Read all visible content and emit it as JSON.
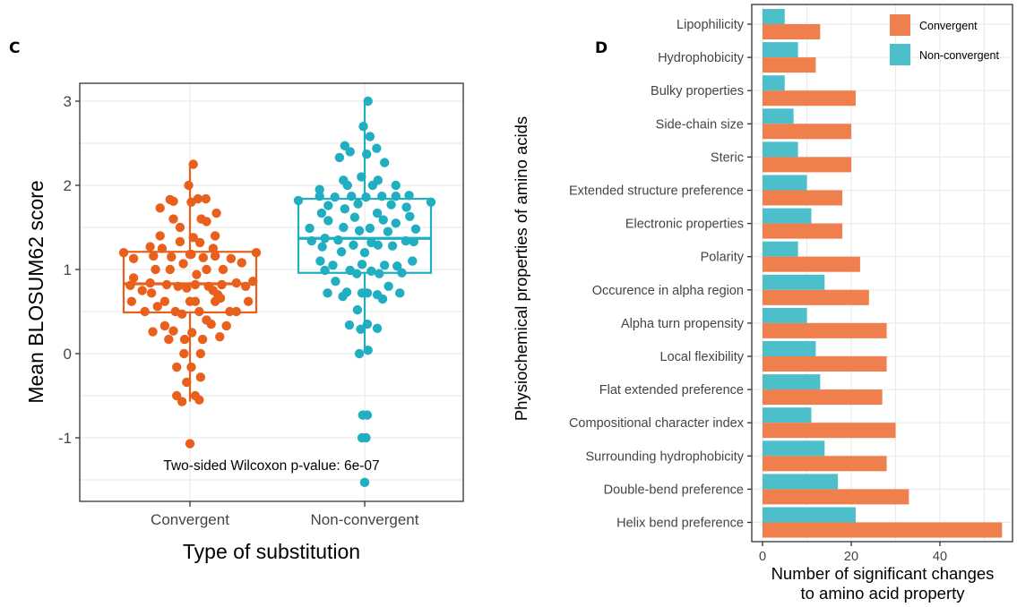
{
  "chart_data": [
    {
      "panel": "C",
      "type": "boxplot",
      "title": "",
      "xlabel": "Type of substitution",
      "ylabel": "Mean BLOSUM62 score",
      "ylim": [
        -1.75,
        3.2
      ],
      "yticks": [
        3,
        2,
        1,
        0,
        -1
      ],
      "ytick_labels": [
        "3",
        "2",
        "1",
        "0",
        "-1"
      ],
      "grid": true,
      "annotation": "Two-sided Wilcoxon p-value: 6e-07",
      "categories": [
        "Convergent",
        "Non-convergent"
      ],
      "series": [
        {
          "name": "Convergent",
          "color": "#e8601c",
          "box": {
            "q1": 0.49,
            "median": 0.83,
            "q3": 1.21,
            "whisker_low": -0.57,
            "whisker_high": 2.25
          },
          "points": [
            [
              0.05,
              2.25
            ],
            [
              -0.02,
              2.0
            ],
            [
              -0.3,
              1.83
            ],
            [
              -0.25,
              1.81
            ],
            [
              0.02,
              1.8
            ],
            [
              0.12,
              1.84
            ],
            [
              0.24,
              1.84
            ],
            [
              -0.45,
              1.73
            ],
            [
              0.4,
              1.67
            ],
            [
              -0.25,
              1.6
            ],
            [
              0.17,
              1.6
            ],
            [
              0.25,
              1.57
            ],
            [
              -0.15,
              1.5
            ],
            [
              -0.45,
              1.4
            ],
            [
              0.05,
              1.38
            ],
            [
              0.38,
              1.4
            ],
            [
              0.15,
              1.32
            ],
            [
              -0.15,
              1.33
            ],
            [
              -0.6,
              1.27
            ],
            [
              -0.42,
              1.25
            ],
            [
              0.35,
              1.25
            ],
            [
              -1.0,
              1.2
            ],
            [
              1.0,
              1.2
            ],
            [
              0.0,
              1.18
            ],
            [
              -0.55,
              1.16
            ],
            [
              -0.28,
              1.15
            ],
            [
              0.02,
              1.18
            ],
            [
              0.38,
              1.16
            ],
            [
              0.2,
              1.14
            ],
            [
              -0.85,
              1.13
            ],
            [
              0.62,
              1.13
            ],
            [
              0.78,
              1.08
            ],
            [
              -0.1,
              1.07
            ],
            [
              -0.52,
              1.0
            ],
            [
              -0.3,
              1.0
            ],
            [
              0.25,
              1.0
            ],
            [
              0.5,
              1.0
            ],
            [
              0.1,
              0.94
            ],
            [
              -0.85,
              0.9
            ],
            [
              0.95,
              0.86
            ],
            [
              -0.9,
              0.81
            ],
            [
              -0.6,
              0.84
            ],
            [
              -0.35,
              0.82
            ],
            [
              -0.18,
              0.8
            ],
            [
              0.08,
              0.82
            ],
            [
              0.28,
              0.8
            ],
            [
              0.48,
              0.82
            ],
            [
              0.7,
              0.84
            ],
            [
              0.84,
              0.8
            ],
            [
              -0.05,
              0.78
            ],
            [
              0.35,
              0.75
            ],
            [
              -0.58,
              0.72
            ],
            [
              0.42,
              0.7
            ],
            [
              -0.72,
              0.75
            ],
            [
              -0.88,
              0.62
            ],
            [
              -0.38,
              0.62
            ],
            [
              0.0,
              0.62
            ],
            [
              0.08,
              0.62
            ],
            [
              0.38,
              0.62
            ],
            [
              0.88,
              0.62
            ],
            [
              0.46,
              0.66
            ],
            [
              -0.49,
              0.56
            ],
            [
              -0.68,
              0.5
            ],
            [
              -0.22,
              0.5
            ],
            [
              -0.12,
              0.47
            ],
            [
              0.14,
              0.5
            ],
            [
              0.6,
              0.5
            ],
            [
              0.7,
              0.5
            ],
            [
              0.25,
              0.4
            ],
            [
              0.32,
              0.35
            ],
            [
              -0.38,
              0.33
            ],
            [
              0.55,
              0.33
            ],
            [
              -0.56,
              0.26
            ],
            [
              -0.25,
              0.27
            ],
            [
              0.03,
              0.25
            ],
            [
              0.45,
              0.2
            ],
            [
              -0.32,
              0.17
            ],
            [
              -0.08,
              0.17
            ],
            [
              0.19,
              0.17
            ],
            [
              -0.09,
              0.0
            ],
            [
              0.16,
              0.0
            ],
            [
              -0.2,
              -0.16
            ],
            [
              0.02,
              -0.16
            ],
            [
              0.16,
              -0.28
            ],
            [
              -0.05,
              -0.34
            ],
            [
              -0.2,
              -0.5
            ],
            [
              0.08,
              -0.5
            ],
            [
              -0.12,
              -0.57
            ],
            [
              0.14,
              -0.55
            ],
            [
              0.0,
              -1.07
            ]
          ]
        },
        {
          "name": "Non-convergent",
          "color": "#20aec0",
          "box": {
            "q1": 0.96,
            "median": 1.37,
            "q3": 1.84,
            "whisker_low": 0.02,
            "whisker_high": 3.0
          },
          "points": [
            [
              0.05,
              3.0
            ],
            [
              -0.02,
              2.7
            ],
            [
              0.08,
              2.58
            ],
            [
              -0.3,
              2.47
            ],
            [
              -0.22,
              2.4
            ],
            [
              0.18,
              2.44
            ],
            [
              -0.38,
              2.33
            ],
            [
              0.03,
              2.37
            ],
            [
              0.3,
              2.27
            ],
            [
              -0.32,
              2.06
            ],
            [
              -0.26,
              2.0
            ],
            [
              -0.05,
              2.1
            ],
            [
              0.2,
              2.06
            ],
            [
              0.12,
              2.0
            ],
            [
              0.47,
              2.0
            ],
            [
              -0.68,
              1.95
            ],
            [
              -0.68,
              1.87
            ],
            [
              -0.45,
              1.86
            ],
            [
              -0.2,
              1.87
            ],
            [
              0.02,
              1.86
            ],
            [
              0.26,
              1.87
            ],
            [
              0.47,
              1.87
            ],
            [
              0.67,
              1.88
            ],
            [
              -1.0,
              1.82
            ],
            [
              1.0,
              1.8
            ],
            [
              -0.55,
              1.76
            ],
            [
              -0.3,
              1.72
            ],
            [
              -0.1,
              1.78
            ],
            [
              0.4,
              1.77
            ],
            [
              0.63,
              1.74
            ],
            [
              -0.65,
              1.67
            ],
            [
              0.19,
              1.67
            ],
            [
              -0.55,
              1.58
            ],
            [
              -0.15,
              1.62
            ],
            [
              0.28,
              1.59
            ],
            [
              0.47,
              1.55
            ],
            [
              0.68,
              1.63
            ],
            [
              -0.83,
              1.49
            ],
            [
              -0.32,
              1.5
            ],
            [
              -0.08,
              1.46
            ],
            [
              0.08,
              1.49
            ],
            [
              0.35,
              1.45
            ],
            [
              0.77,
              1.48
            ],
            [
              -0.8,
              1.34
            ],
            [
              -0.6,
              1.37
            ],
            [
              -0.4,
              1.35
            ],
            [
              -0.17,
              1.29
            ],
            [
              0.1,
              1.32
            ],
            [
              0.2,
              1.29
            ],
            [
              0.62,
              1.34
            ],
            [
              0.74,
              1.33
            ],
            [
              -0.64,
              1.27
            ],
            [
              0.42,
              1.28
            ],
            [
              -0.35,
              1.21
            ],
            [
              0.0,
              1.2
            ],
            [
              -0.67,
              1.1
            ],
            [
              -0.48,
              1.05
            ],
            [
              -0.04,
              1.06
            ],
            [
              0.3,
              1.05
            ],
            [
              0.49,
              1.04
            ],
            [
              0.72,
              1.1
            ],
            [
              -0.6,
              0.99
            ],
            [
              -0.22,
              0.99
            ],
            [
              0.1,
              0.98
            ],
            [
              -0.12,
              0.95
            ],
            [
              0.22,
              0.95
            ],
            [
              0.56,
              0.96
            ],
            [
              -0.44,
              0.86
            ],
            [
              0.36,
              0.8
            ],
            [
              -0.56,
              0.72
            ],
            [
              -0.33,
              0.68
            ],
            [
              -0.27,
              0.73
            ],
            [
              -0.04,
              0.72
            ],
            [
              0.04,
              0.72
            ],
            [
              0.19,
              0.7
            ],
            [
              0.27,
              0.65
            ],
            [
              0.53,
              0.72
            ],
            [
              -0.11,
              0.52
            ],
            [
              -0.23,
              0.34
            ],
            [
              0.04,
              0.35
            ],
            [
              -0.06,
              0.29
            ],
            [
              0.19,
              0.3
            ],
            [
              -0.08,
              0.0
            ],
            [
              0.05,
              0.04
            ],
            [
              -0.03,
              -0.73
            ],
            [
              0.04,
              -0.73
            ],
            [
              -0.04,
              -1.0
            ],
            [
              0.02,
              -1.0
            ],
            [
              0.0,
              -1.53
            ]
          ]
        }
      ]
    },
    {
      "panel": "D",
      "type": "bar",
      "orientation": "horizontal",
      "title": "",
      "xlabel": "Number of significant changes\nto amino acid property",
      "xlabel_lines": [
        "Number of significant changes",
        "to amino acid property"
      ],
      "ylabel": "Physiochemical properties of amino acids",
      "xlim": [
        0,
        54
      ],
      "xticks": [
        0,
        20,
        40
      ],
      "xtick_labels": [
        "0",
        "20",
        "40"
      ],
      "grid": true,
      "legend": {
        "placement": "top-right",
        "entries": [
          "Convergent",
          "Non-convergent"
        ]
      },
      "categories": [
        "Lipophilicity",
        "Hydrophobicity",
        "Bulky properties",
        "Side-chain size",
        "Steric",
        "Extended structure preference",
        "Electronic properties",
        "Polarity",
        "Occurence in alpha region",
        "Alpha turn propensity",
        "Local flexibility",
        "Flat extended preference",
        "Compositional character index",
        "Surrounding hydrophobicity",
        "Double-bend preference",
        "Helix bend preference"
      ],
      "series": [
        {
          "name": "Convergent",
          "color": "#ef7f4c",
          "values": [
            13,
            12,
            21,
            20,
            20,
            18,
            18,
            22,
            24,
            28,
            28,
            27,
            30,
            28,
            33,
            54
          ]
        },
        {
          "name": "Non-convergent",
          "color": "#4cbfca",
          "values": [
            5,
            8,
            5,
            7,
            8,
            10,
            11,
            8,
            14,
            10,
            12,
            13,
            11,
            14,
            17,
            21
          ]
        }
      ]
    }
  ],
  "labels": {
    "panel_c": "C",
    "panel_d": "D"
  }
}
